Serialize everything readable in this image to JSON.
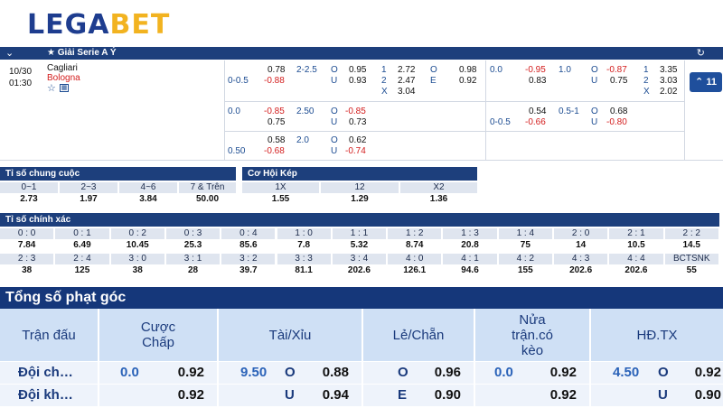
{
  "logo": {
    "part1": "LEGA",
    "part2": "BET"
  },
  "league": {
    "name": "Giải Serie A Ý"
  },
  "match": {
    "date": "10/30",
    "time": "01:30",
    "home": "Cagliari",
    "away": "Bologna",
    "more_count": "11"
  },
  "odds_rows": [
    {
      "hdp_line": "0-0.5",
      "hdp_home": "0.78",
      "hdp_away": "-0.88",
      "ou_line": "2-2.5",
      "ou_o": "0.95",
      "ou_u": "0.93",
      "x12_1": "2.72",
      "x12_2": "2.47",
      "x12_x": "3.04",
      "oe_o": "0.98",
      "oe_e": "0.92",
      "h1_hdp_line": "0.0",
      "h1_hdp_home": "-0.95",
      "h1_hdp_away": "0.83",
      "h1_ou_line": "1.0",
      "h1_ou_o": "-0.87",
      "h1_ou_u": "0.75",
      "h1_x12_1": "3.35",
      "h1_x12_2": "3.03",
      "h1_x12_x": "2.02"
    },
    {
      "hdp_line": "0.0",
      "hdp_home": "-0.85",
      "hdp_away": "0.75",
      "ou_line": "2.50",
      "ou_o": "-0.85",
      "ou_u": "0.73",
      "h1_hdp_line": "0-0.5",
      "h1_hdp_home": "0.54",
      "h1_hdp_away": "-0.66",
      "h1_ou_line": "0.5-1",
      "h1_ou_o": "0.68",
      "h1_ou_u": "-0.80"
    },
    {
      "hdp_line": "0.50",
      "hdp_home": "0.58",
      "hdp_away": "-0.68",
      "ou_line": "2.0",
      "ou_o": "0.62",
      "ou_u": "-0.74"
    }
  ],
  "labels": {
    "o": "O",
    "u": "U",
    "one": "1",
    "two": "2",
    "x": "X",
    "e": "E"
  },
  "final_score": {
    "title": "Tỉ số chung cuộc",
    "items": [
      {
        "label": "0~1",
        "value": "2.73"
      },
      {
        "label": "2~3",
        "value": "1.97"
      },
      {
        "label": "4~6",
        "value": "3.84"
      },
      {
        "label": "7 & Trên",
        "value": "50.00"
      }
    ]
  },
  "double_chance": {
    "title": "Cơ Hội Kép",
    "items": [
      {
        "label": "1X",
        "value": "1.55"
      },
      {
        "label": "12",
        "value": "1.29"
      },
      {
        "label": "X2",
        "value": "1.36"
      }
    ]
  },
  "correct_score": {
    "title": "Tỉ số chính xác",
    "row1": [
      {
        "label": "0 : 0",
        "value": "7.84"
      },
      {
        "label": "0 : 1",
        "value": "6.49"
      },
      {
        "label": "0 : 2",
        "value": "10.45"
      },
      {
        "label": "0 : 3",
        "value": "25.3"
      },
      {
        "label": "0 : 4",
        "value": "85.6"
      },
      {
        "label": "1 : 0",
        "value": "7.8"
      },
      {
        "label": "1 : 1",
        "value": "5.32"
      },
      {
        "label": "1 : 2",
        "value": "8.74"
      },
      {
        "label": "1 : 3",
        "value": "20.8"
      },
      {
        "label": "1 : 4",
        "value": "75"
      },
      {
        "label": "2 : 0",
        "value": "14"
      },
      {
        "label": "2 : 1",
        "value": "10.5"
      },
      {
        "label": "2 : 2",
        "value": "14.5"
      }
    ],
    "row2": [
      {
        "label": "2 : 3",
        "value": "38"
      },
      {
        "label": "2 : 4",
        "value": "125"
      },
      {
        "label": "3 : 0",
        "value": "38"
      },
      {
        "label": "3 : 1",
        "value": "28"
      },
      {
        "label": "3 : 2",
        "value": "39.7"
      },
      {
        "label": "3 : 3",
        "value": "81.1"
      },
      {
        "label": "3 : 4",
        "value": "202.6"
      },
      {
        "label": "4 : 0",
        "value": "126.1"
      },
      {
        "label": "4 : 1",
        "value": "94.6"
      },
      {
        "label": "4 : 2",
        "value": "155"
      },
      {
        "label": "4 : 3",
        "value": "202.6"
      },
      {
        "label": "4 : 4",
        "value": "202.6"
      },
      {
        "label": "BCTSNK",
        "value": "55"
      }
    ]
  },
  "corners": {
    "title": "Tổng số phạt góc",
    "headers": {
      "match": "Trận đấu",
      "hdp": "Cược Chấp",
      "ou": "Tài/Xỉu",
      "oe": "Lẻ/Chẵn",
      "half": "Nửa trận.có kèo",
      "hdtx": "HĐ.TX"
    },
    "rows": [
      {
        "team": "Đội ch…",
        "hdp_line": "0.0",
        "hdp_val": "0.92",
        "ou_line": "9.50",
        "ou_sym": "O",
        "ou_val": "0.88",
        "oe_sym": "O",
        "oe_val": "0.96",
        "half_line": "0.0",
        "half_val": "0.92",
        "hdtx_line": "4.50",
        "hdtx_sym": "O",
        "hdtx_val": "0.92"
      },
      {
        "team": "Đội kh…",
        "hdp_line": "",
        "hdp_val": "0.92",
        "ou_line": "",
        "ou_sym": "U",
        "ou_val": "0.94",
        "oe_sym": "E",
        "oe_val": "0.90",
        "half_line": "",
        "half_val": "0.92",
        "hdtx_line": "",
        "hdtx_sym": "U",
        "hdtx_val": "0.90"
      }
    ]
  }
}
